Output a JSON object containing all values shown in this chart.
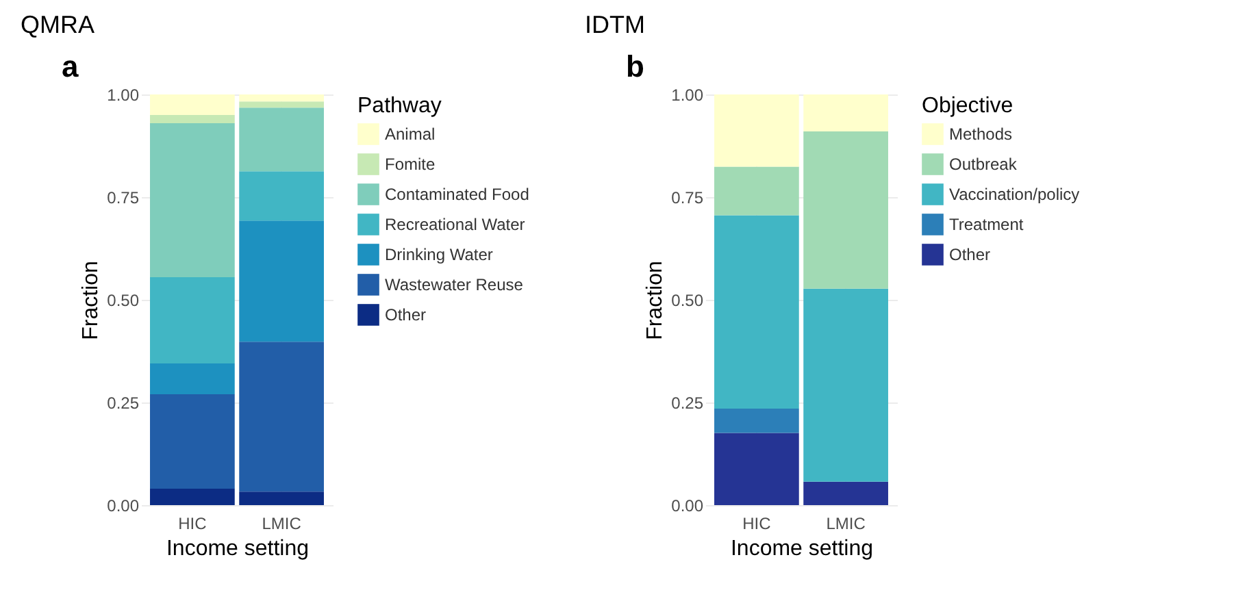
{
  "chart_data": [
    {
      "type": "bar",
      "title": "QMRA",
      "annotations": [
        "a"
      ],
      "xlabel": "Income setting",
      "ylabel": "Fraction",
      "legend_title": "Pathway",
      "categories": [
        "HIC",
        "LMIC"
      ],
      "stacked": true,
      "ylim": [
        0,
        1
      ],
      "yticks": [
        {
          "value": 0,
          "label": "0.00"
        },
        {
          "value": 0.25,
          "label": "0.25"
        },
        {
          "value": 0.5,
          "label": "0.50"
        },
        {
          "value": 0.75,
          "label": "0.75"
        },
        {
          "value": 1,
          "label": "1.00"
        }
      ],
      "grid": true,
      "legend": "right",
      "series": [
        {
          "name": "Other",
          "color": "#0c2c84",
          "values": [
            0.04,
            0.033
          ]
        },
        {
          "name": "Wastewater Reuse",
          "color": "#225ea8",
          "values": [
            0.23,
            0.365
          ]
        },
        {
          "name": "Drinking Water",
          "color": "#1d91c0",
          "values": [
            0.075,
            0.295
          ]
        },
        {
          "name": "Recreational Water",
          "color": "#41b6c4",
          "values": [
            0.21,
            0.12
          ]
        },
        {
          "name": "Contaminated Food",
          "color": "#7fcdbb",
          "values": [
            0.375,
            0.155
          ]
        },
        {
          "name": "Fomite",
          "color": "#c7e9b4",
          "values": [
            0.02,
            0.015
          ]
        },
        {
          "name": "Animal",
          "color": "#ffffcc",
          "values": [
            0.05,
            0.017
          ]
        }
      ]
    },
    {
      "type": "bar",
      "title": "IDTM",
      "annotations": [
        "b"
      ],
      "xlabel": "Income setting",
      "ylabel": "Fraction",
      "legend_title": "Objective",
      "categories": [
        "HIC",
        "LMIC"
      ],
      "stacked": true,
      "ylim": [
        0,
        1
      ],
      "yticks": [
        {
          "value": 0,
          "label": "0.00"
        },
        {
          "value": 0.25,
          "label": "0.25"
        },
        {
          "value": 0.5,
          "label": "0.50"
        },
        {
          "value": 0.75,
          "label": "0.75"
        },
        {
          "value": 1,
          "label": "1.00"
        }
      ],
      "grid": true,
      "legend": "right",
      "series": [
        {
          "name": "Other",
          "color": "#253494",
          "values": [
            0.176,
            0.057
          ]
        },
        {
          "name": "Treatment",
          "color": "#2c7fb8",
          "values": [
            0.059,
            0
          ]
        },
        {
          "name": "Vaccination/policy",
          "color": "#41b6c4",
          "values": [
            0.471,
            0.47
          ]
        },
        {
          "name": "Outbreak",
          "color": "#a1dab4",
          "values": [
            0.118,
            0.383
          ]
        },
        {
          "name": "Methods",
          "color": "#ffffcc",
          "values": [
            0.176,
            0.09
          ]
        }
      ]
    }
  ]
}
